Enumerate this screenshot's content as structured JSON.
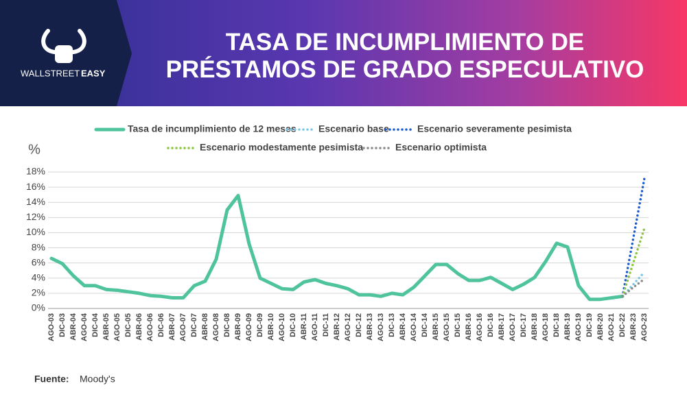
{
  "brand": {
    "prefix": "WALLSTREET",
    "suffix": "EASY"
  },
  "source": {
    "label": "Fuente:",
    "text": "Moody's"
  },
  "chart_data": {
    "type": "line",
    "title": "TASA DE INCUMPLIMIENTO DE PRÉSTAMOS DE GRADO ESPECULATIVO",
    "y_label": "%",
    "legend": "top",
    "grid": true,
    "categories": [
      "AGO-03",
      "DIC-03",
      "ABR-04",
      "AGO-04",
      "DIC-04",
      "ABR-05",
      "AGO-05",
      "DIC-05",
      "ABR-06",
      "AGO-06",
      "DIC-06",
      "ABR-07",
      "AGO-07",
      "DIC-07",
      "ABR-08",
      "AGO-08",
      "DIC-08",
      "ABR-09",
      "AGO-09",
      "DIC-09",
      "ABR-10",
      "AGO-10",
      "DIC-10",
      "ABR-11",
      "AGO-11",
      "DIC-11",
      "ABR-12",
      "AGO-12",
      "DIC-12",
      "ABR-13",
      "AGO-13",
      "DIC-13",
      "ABR-14",
      "AGO-14",
      "DIC-14",
      "ABR-15",
      "AGO-15",
      "DIC-15",
      "ABR-16",
      "AGO-16",
      "DIC-16",
      "ABR-17",
      "AGO-17",
      "DIC-17",
      "ABR-18",
      "AGO-18",
      "DIC-18",
      "ABR-19",
      "AGO-19",
      "DIC-19",
      "ABR-20",
      "AGO-21",
      "DIC-22",
      "ABR-23",
      "AGO-23"
    ],
    "ylim": [
      0,
      18
    ],
    "yticks": [
      {
        "value": 0,
        "label": "0%"
      },
      {
        "value": 2,
        "label": "2%"
      },
      {
        "value": 4,
        "label": "4%"
      },
      {
        "value": 6,
        "label": "6%"
      },
      {
        "value": 8,
        "label": "8%"
      },
      {
        "value": 10,
        "label": "10%"
      },
      {
        "value": 12,
        "label": "12%"
      },
      {
        "value": 14,
        "label": "14%"
      },
      {
        "value": 16,
        "label": "16%"
      },
      {
        "value": 18,
        "label": "18%"
      }
    ],
    "series": [
      {
        "name": "Tasa de incumplimiento de 12 meses",
        "color": "#4fc49c",
        "style": "solid",
        "values": [
          6.6,
          5.9,
          4.3,
          3.0,
          3.0,
          2.5,
          2.4,
          2.2,
          2.0,
          1.7,
          1.6,
          1.4,
          1.4,
          3.0,
          3.6,
          6.5,
          13.0,
          14.9,
          8.5,
          4.0,
          3.3,
          2.6,
          2.5,
          3.5,
          3.8,
          3.3,
          3.0,
          2.6,
          1.8,
          1.8,
          1.6,
          2.0,
          1.8,
          2.8,
          4.3,
          5.8,
          5.8,
          4.6,
          3.7,
          3.7,
          4.1,
          3.3,
          2.5,
          3.2,
          4.1,
          6.2,
          8.6,
          8.1,
          3.0,
          1.2,
          1.2,
          1.4,
          1.6,
          null,
          null
        ]
      },
      {
        "name": "Escenario base",
        "color": "#7cc6e6",
        "style": "dotted",
        "values": [
          null,
          null,
          null,
          null,
          null,
          null,
          null,
          null,
          null,
          null,
          null,
          null,
          null,
          null,
          null,
          null,
          null,
          null,
          null,
          null,
          null,
          null,
          null,
          null,
          null,
          null,
          null,
          null,
          null,
          null,
          null,
          null,
          null,
          null,
          null,
          null,
          null,
          null,
          null,
          null,
          null,
          null,
          null,
          null,
          null,
          null,
          null,
          null,
          null,
          null,
          null,
          null,
          1.6,
          3.2,
          4.8
        ]
      },
      {
        "name": "Escenario severamente pesimista",
        "color": "#1a5bd0",
        "style": "dotted",
        "values": [
          null,
          null,
          null,
          null,
          null,
          null,
          null,
          null,
          null,
          null,
          null,
          null,
          null,
          null,
          null,
          null,
          null,
          null,
          null,
          null,
          null,
          null,
          null,
          null,
          null,
          null,
          null,
          null,
          null,
          null,
          null,
          null,
          null,
          null,
          null,
          null,
          null,
          null,
          null,
          null,
          null,
          null,
          null,
          null,
          null,
          null,
          null,
          null,
          null,
          null,
          null,
          null,
          1.6,
          9.4,
          17.2
        ]
      },
      {
        "name": "Escenario modestamente pesimista",
        "color": "#8cc43f",
        "style": "dotted",
        "values": [
          null,
          null,
          null,
          null,
          null,
          null,
          null,
          null,
          null,
          null,
          null,
          null,
          null,
          null,
          null,
          null,
          null,
          null,
          null,
          null,
          null,
          null,
          null,
          null,
          null,
          null,
          null,
          null,
          null,
          null,
          null,
          null,
          null,
          null,
          null,
          null,
          null,
          null,
          null,
          null,
          null,
          null,
          null,
          null,
          null,
          null,
          null,
          null,
          null,
          null,
          null,
          null,
          1.6,
          6.1,
          10.6
        ]
      },
      {
        "name": "Escenario optimista",
        "color": "#8a8a8a",
        "style": "dotted",
        "values": [
          null,
          null,
          null,
          null,
          null,
          null,
          null,
          null,
          null,
          null,
          null,
          null,
          null,
          null,
          null,
          null,
          null,
          null,
          null,
          null,
          null,
          null,
          null,
          null,
          null,
          null,
          null,
          null,
          null,
          null,
          null,
          null,
          null,
          null,
          null,
          null,
          null,
          null,
          null,
          null,
          null,
          null,
          null,
          null,
          null,
          null,
          null,
          null,
          null,
          null,
          null,
          null,
          1.6,
          2.8,
          3.9
        ]
      }
    ]
  }
}
